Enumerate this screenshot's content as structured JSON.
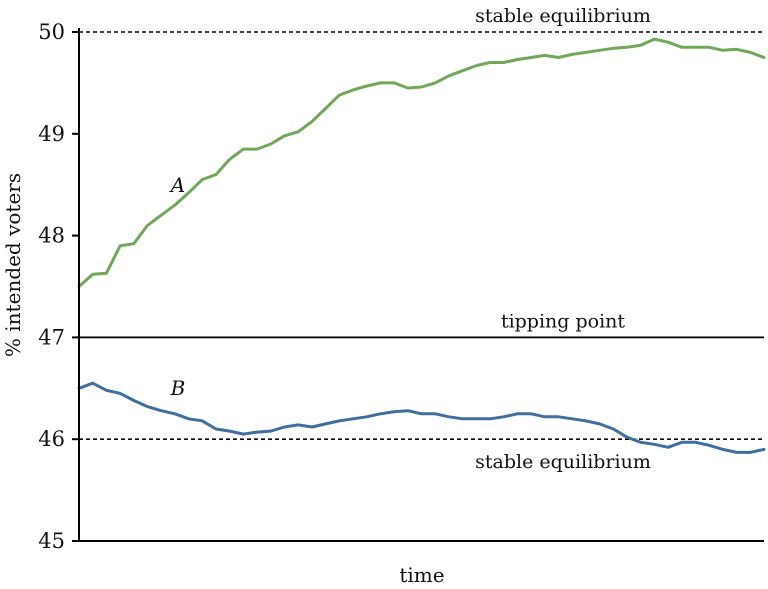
{
  "chart_data": {
    "type": "line",
    "title": "",
    "xlabel": "time",
    "ylabel": "% intended voters",
    "ylim": [
      45,
      50
    ],
    "xlim": [
      0,
      100
    ],
    "yticks": [
      45,
      46,
      47,
      48,
      49,
      50
    ],
    "grid": false,
    "reference_lines": [
      {
        "label": "stable equilibrium",
        "y": 50,
        "style": "dashed"
      },
      {
        "label": "tipping point",
        "y": 47,
        "style": "solid"
      },
      {
        "label": "stable equilibrium",
        "y": 46,
        "style": "dashed"
      }
    ],
    "series": [
      {
        "name": "A",
        "color": "#70a85a",
        "x": [
          0,
          2,
          4,
          6,
          8,
          10,
          12,
          14,
          16,
          18,
          20,
          22,
          24,
          26,
          28,
          30,
          32,
          34,
          36,
          38,
          40,
          42,
          44,
          46,
          48,
          50,
          52,
          54,
          56,
          58,
          60,
          62,
          64,
          66,
          68,
          70,
          72,
          74,
          76,
          78,
          80,
          82,
          84,
          86,
          88,
          90,
          92,
          94,
          96,
          98,
          100
        ],
        "y": [
          47.5,
          47.62,
          47.63,
          47.9,
          47.92,
          48.1,
          48.2,
          48.3,
          48.42,
          48.55,
          48.6,
          48.75,
          48.85,
          48.85,
          48.9,
          48.98,
          49.02,
          49.12,
          49.25,
          49.38,
          49.43,
          49.47,
          49.5,
          49.5,
          49.45,
          49.46,
          49.5,
          49.57,
          49.62,
          49.67,
          49.7,
          49.7,
          49.73,
          49.75,
          49.77,
          49.75,
          49.78,
          49.8,
          49.82,
          49.84,
          49.85,
          49.87,
          49.93,
          49.9,
          49.85,
          49.85,
          49.85,
          49.82,
          49.83,
          49.8,
          49.75
        ]
      },
      {
        "name": "B",
        "color": "#3f6f9f",
        "x": [
          0,
          2,
          4,
          6,
          8,
          10,
          12,
          14,
          16,
          18,
          20,
          22,
          24,
          26,
          28,
          30,
          32,
          34,
          36,
          38,
          40,
          42,
          44,
          46,
          48,
          50,
          52,
          54,
          56,
          58,
          60,
          62,
          64,
          66,
          68,
          70,
          72,
          74,
          76,
          78,
          80,
          82,
          84,
          86,
          88,
          90,
          92,
          94,
          96,
          98,
          100
        ],
        "y": [
          46.5,
          46.55,
          46.48,
          46.45,
          46.38,
          46.32,
          46.28,
          46.25,
          46.2,
          46.18,
          46.1,
          46.08,
          46.05,
          46.07,
          46.08,
          46.12,
          46.14,
          46.12,
          46.15,
          46.18,
          46.2,
          46.22,
          46.25,
          46.27,
          46.28,
          46.25,
          46.25,
          46.22,
          46.2,
          46.2,
          46.2,
          46.22,
          46.25,
          46.25,
          46.22,
          46.22,
          46.2,
          46.18,
          46.15,
          46.1,
          46.02,
          45.97,
          45.95,
          45.92,
          45.97,
          45.97,
          45.94,
          45.9,
          45.87,
          45.87,
          45.9
        ]
      }
    ]
  }
}
